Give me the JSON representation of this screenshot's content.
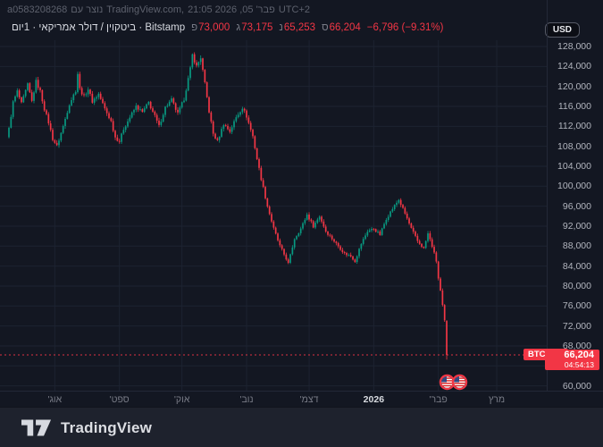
{
  "watermark": {
    "user_id": "a0583208268",
    "created_with": "נוצר עם",
    "site": "TradingView.com,",
    "datetime": "פבר' 05, 2026 21:05",
    "timezone": "UTC+2"
  },
  "legend": {
    "symbol_line": "ביטקוין / דולר אמריקאי · 1יום · Bitstamp",
    "ohlc": [
      {
        "label": "פ",
        "value": "73,000"
      },
      {
        "label": "ג",
        "value": "73,175"
      },
      {
        "label": "נ",
        "value": "65,253"
      },
      {
        "label": "ס",
        "value": "66,204"
      }
    ],
    "change": "−6,796 (−9.31%)"
  },
  "currency_button": {
    "label": "USD"
  },
  "price_label": {
    "symbol": "BTCUSD",
    "price": "66,204",
    "countdown": "04:54:13"
  },
  "logo": {
    "wordmark": "TradingView"
  },
  "chart_data": {
    "type": "candlestick",
    "symbol": "BTCUSD",
    "exchange": "Bitstamp",
    "interval": "1D",
    "up_color": "#089981",
    "down_color": "#f23645",
    "ohlc_current": {
      "open": 73000,
      "high": 73175,
      "low": 65253,
      "close": 66204,
      "change": -6796,
      "change_pct": -9.31
    },
    "last_price": 66204,
    "y_axis": {
      "min": 60000,
      "max": 128000,
      "tick": 4000
    },
    "y_tick_labels": [
      "128,000",
      "124,000",
      "120,000",
      "116,000",
      "112,000",
      "108,000",
      "104,000",
      "100,000",
      "96,000",
      "92,000",
      "88,000",
      "84,000",
      "80,000",
      "76,000",
      "72,000",
      "68,000",
      "60,000"
    ],
    "x_axis_months": [
      "אוג'",
      "ספט'",
      "אוק'",
      "נוב'",
      "דצמ'",
      "2026",
      "פבר'",
      "מרץ"
    ],
    "month_tick_day_indices": [
      22,
      53,
      83,
      114,
      144,
      175,
      206,
      234
    ],
    "price_path": [
      [
        0,
        111500
      ],
      [
        2,
        116800
      ],
      [
        4,
        119000
      ],
      [
        6,
        116500
      ],
      [
        9,
        120300
      ],
      [
        11,
        117000
      ],
      [
        13,
        121000
      ],
      [
        15,
        119000
      ],
      [
        17,
        115500
      ],
      [
        19,
        112800
      ],
      [
        21,
        109500
      ],
      [
        23,
        108000
      ],
      [
        26,
        112000
      ],
      [
        29,
        116500
      ],
      [
        32,
        119200
      ],
      [
        33,
        122600
      ],
      [
        34,
        119500
      ],
      [
        36,
        118000
      ],
      [
        38,
        119500
      ],
      [
        40,
        117000
      ],
      [
        43,
        118500
      ],
      [
        46,
        115500
      ],
      [
        49,
        113000
      ],
      [
        51,
        109800
      ],
      [
        53,
        109000
      ],
      [
        55,
        111500
      ],
      [
        58,
        113800
      ],
      [
        61,
        116000
      ],
      [
        64,
        114800
      ],
      [
        67,
        116800
      ],
      [
        70,
        114000
      ],
      [
        72,
        112000
      ],
      [
        75,
        115800
      ],
      [
        78,
        117300
      ],
      [
        81,
        114500
      ],
      [
        84,
        117500
      ],
      [
        87,
        123500
      ],
      [
        88,
        126300
      ],
      [
        90,
        124000
      ],
      [
        92,
        125800
      ],
      [
        94,
        120500
      ],
      [
        96,
        115000
      ],
      [
        98,
        110500
      ],
      [
        100,
        109000
      ],
      [
        103,
        112500
      ],
      [
        106,
        111000
      ],
      [
        109,
        113800
      ],
      [
        112,
        115800
      ],
      [
        114,
        114000
      ],
      [
        117,
        110000
      ],
      [
        119,
        105500
      ],
      [
        121,
        101500
      ],
      [
        124,
        96000
      ],
      [
        127,
        91500
      ],
      [
        130,
        88000
      ],
      [
        133,
        85500
      ],
      [
        134,
        84500
      ],
      [
        137,
        89500
      ],
      [
        140,
        91500
      ],
      [
        143,
        94300
      ],
      [
        146,
        92000
      ],
      [
        149,
        94000
      ],
      [
        152,
        91000
      ],
      [
        155,
        89500
      ],
      [
        158,
        88000
      ],
      [
        161,
        86500
      ],
      [
        164,
        86000
      ],
      [
        166,
        85000
      ],
      [
        169,
        88500
      ],
      [
        172,
        91000
      ],
      [
        175,
        91500
      ],
      [
        178,
        90300
      ],
      [
        181,
        93500
      ],
      [
        184,
        95500
      ],
      [
        187,
        97300
      ],
      [
        190,
        94500
      ],
      [
        193,
        91500
      ],
      [
        196,
        89000
      ],
      [
        199,
        87500
      ],
      [
        201,
        90500
      ],
      [
        203,
        88000
      ],
      [
        205,
        85000
      ],
      [
        206,
        81500
      ],
      [
        207,
        79000
      ],
      [
        208,
        76000
      ],
      [
        209,
        73000
      ],
      [
        210,
        66204
      ]
    ]
  }
}
